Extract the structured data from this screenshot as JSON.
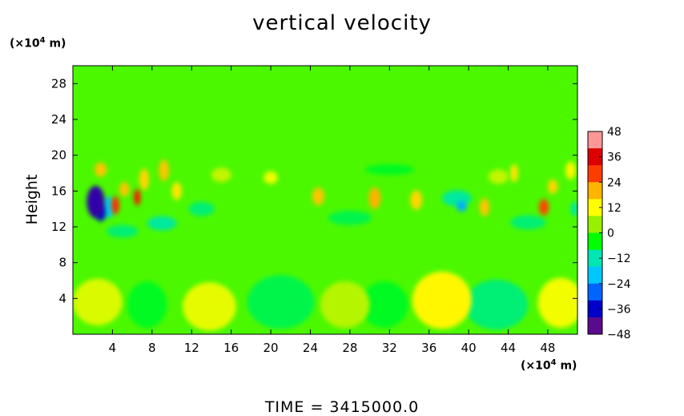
{
  "title": "vertical velocity",
  "footer": "TIME  =  3415000.0",
  "y_unit": {
    "base": "(×10",
    "exp": "4",
    "tail": " m)"
  },
  "x_unit": {
    "base": "(×10",
    "exp": "4",
    "tail": " m)"
  },
  "chart_data": {
    "type": "heatmap",
    "title": "vertical velocity",
    "ylabel": "Height",
    "xlabel": "",
    "x_unit": "×10^4 m",
    "y_unit": "×10^4 m",
    "xlim": [
      0,
      51
    ],
    "ylim": [
      0,
      30
    ],
    "x_ticks": [
      4,
      8,
      12,
      16,
      20,
      24,
      28,
      32,
      36,
      40,
      44,
      48
    ],
    "y_ticks": [
      4,
      8,
      12,
      16,
      20,
      24,
      28
    ],
    "colorbar": {
      "ticks": [
        48,
        36,
        24,
        12,
        0,
        -12,
        -24,
        -36,
        -48
      ],
      "range": [
        -48,
        48
      ],
      "colors": [
        "#5a0a8c",
        "#0000c8",
        "#0064ff",
        "#00c8ff",
        "#00e6b4",
        "#00ff00",
        "#96f000",
        "#ffff00",
        "#ffb400",
        "#ff3c00",
        "#dc0000",
        "#ff9696"
      ]
    },
    "background_value": 0,
    "features": [
      {
        "x": 2.3,
        "y": 14.8,
        "value": -44,
        "rx": 0.9,
        "ry": 1.8
      },
      {
        "x": 2.8,
        "y": 13.5,
        "value": -38,
        "rx": 0.5,
        "ry": 0.9
      },
      {
        "x": 3.6,
        "y": 14.2,
        "value": -20,
        "rx": 0.6,
        "ry": 1.2
      },
      {
        "x": 4.3,
        "y": 14.4,
        "value": 32,
        "rx": 0.4,
        "ry": 1.0
      },
      {
        "x": 6.5,
        "y": 15.3,
        "value": 34,
        "rx": 0.35,
        "ry": 0.9
      },
      {
        "x": 5.2,
        "y": 16.2,
        "value": 20,
        "rx": 0.5,
        "ry": 0.8
      },
      {
        "x": 2.8,
        "y": 18.4,
        "value": 20,
        "rx": 0.6,
        "ry": 0.8
      },
      {
        "x": 7.2,
        "y": 17.3,
        "value": 18,
        "rx": 0.5,
        "ry": 1.2
      },
      {
        "x": 9.2,
        "y": 18.3,
        "value": 20,
        "rx": 0.5,
        "ry": 1.2
      },
      {
        "x": 10.5,
        "y": 16.0,
        "value": 16,
        "rx": 0.5,
        "ry": 1.0
      },
      {
        "x": 9.0,
        "y": 12.4,
        "value": -12,
        "rx": 1.5,
        "ry": 0.8
      },
      {
        "x": 5.0,
        "y": 11.5,
        "value": -10,
        "rx": 1.6,
        "ry": 0.7
      },
      {
        "x": 13.0,
        "y": 14.0,
        "value": -10,
        "rx": 1.3,
        "ry": 0.8
      },
      {
        "x": 24.8,
        "y": 15.4,
        "value": 20,
        "rx": 0.6,
        "ry": 1.0
      },
      {
        "x": 30.5,
        "y": 15.2,
        "value": 22,
        "rx": 0.6,
        "ry": 1.2
      },
      {
        "x": 34.7,
        "y": 15.0,
        "value": 18,
        "rx": 0.6,
        "ry": 1.1
      },
      {
        "x": 20.0,
        "y": 17.5,
        "value": 12,
        "rx": 0.7,
        "ry": 0.7
      },
      {
        "x": 39.3,
        "y": 14.3,
        "value": -24,
        "rx": 0.5,
        "ry": 0.6
      },
      {
        "x": 38.8,
        "y": 15.2,
        "value": -12,
        "rx": 1.5,
        "ry": 0.9
      },
      {
        "x": 41.6,
        "y": 14.2,
        "value": 20,
        "rx": 0.5,
        "ry": 1.0
      },
      {
        "x": 44.6,
        "y": 18.0,
        "value": 16,
        "rx": 0.4,
        "ry": 1.0
      },
      {
        "x": 47.6,
        "y": 14.2,
        "value": 30,
        "rx": 0.5,
        "ry": 0.9
      },
      {
        "x": 48.5,
        "y": 16.5,
        "value": 18,
        "rx": 0.5,
        "ry": 0.8
      },
      {
        "x": 50.3,
        "y": 18.3,
        "value": 14,
        "rx": 0.5,
        "ry": 1.0
      },
      {
        "x": 50.7,
        "y": 14.0,
        "value": -12,
        "rx": 0.4,
        "ry": 0.8
      },
      {
        "x": 46.0,
        "y": 12.5,
        "value": -10,
        "rx": 1.8,
        "ry": 0.8
      },
      {
        "x": 28.0,
        "y": 13.0,
        "value": -8,
        "rx": 2.2,
        "ry": 0.8
      },
      {
        "x": 32.0,
        "y": 18.4,
        "value": -6,
        "rx": 2.5,
        "ry": 0.6
      },
      {
        "x": 15.0,
        "y": 17.8,
        "value": 8,
        "rx": 1.0,
        "ry": 0.8
      },
      {
        "x": 43.0,
        "y": 17.6,
        "value": 8,
        "rx": 1.0,
        "ry": 0.8
      },
      {
        "x": 2.5,
        "y": 3.6,
        "value": 10,
        "rx": 2.5,
        "ry": 2.6
      },
      {
        "x": 7.5,
        "y": 3.3,
        "value": -6,
        "rx": 2.0,
        "ry": 2.6
      },
      {
        "x": 13.8,
        "y": 3.1,
        "value": 11,
        "rx": 2.7,
        "ry": 2.7
      },
      {
        "x": 21.0,
        "y": 3.6,
        "value": -8,
        "rx": 3.4,
        "ry": 3.0
      },
      {
        "x": 27.5,
        "y": 3.3,
        "value": 7,
        "rx": 2.5,
        "ry": 2.6
      },
      {
        "x": 31.5,
        "y": 3.3,
        "value": -6,
        "rx": 2.4,
        "ry": 2.6
      },
      {
        "x": 37.3,
        "y": 3.8,
        "value": 14,
        "rx": 3.0,
        "ry": 3.2
      },
      {
        "x": 42.8,
        "y": 3.3,
        "value": -10,
        "rx": 3.2,
        "ry": 2.8
      },
      {
        "x": 49.3,
        "y": 3.5,
        "value": 12,
        "rx": 2.3,
        "ry": 2.8
      }
    ]
  }
}
